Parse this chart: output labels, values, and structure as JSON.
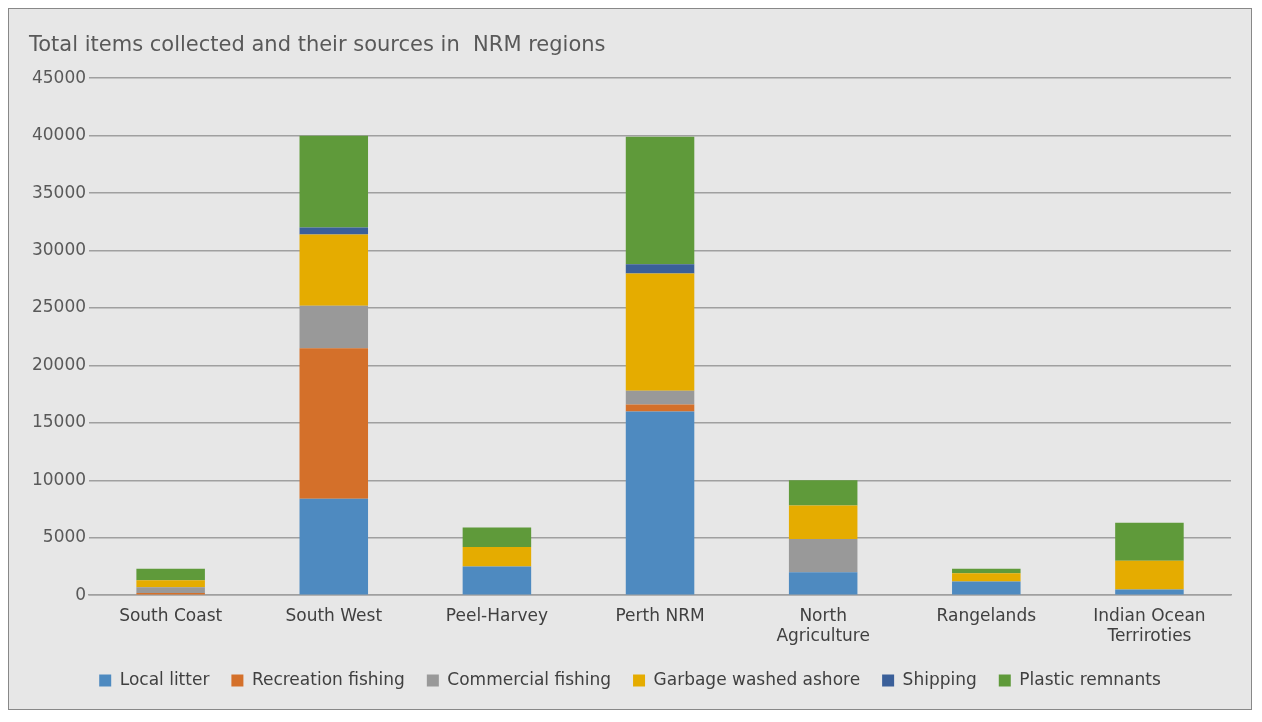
{
  "chart_data": {
    "type": "bar",
    "title": "Total items collected and their sources in  NRM regions",
    "categories": [
      "South Coast",
      "South West",
      "Peel-Harvey",
      "Perth NRM",
      "North Agriculture",
      "Rangelands",
      "Indian Ocean Terriroties"
    ],
    "stacked": true,
    "ylim": [
      0,
      45000
    ],
    "yticks": [
      0,
      5000,
      10000,
      15000,
      20000,
      25000,
      30000,
      35000,
      40000,
      45000
    ],
    "grid": "y",
    "legend": "bottom",
    "series": [
      {
        "name": "Local litter",
        "color": "#4e8ac0",
        "values": [
          null,
          8400,
          2500,
          16000,
          2000,
          1200,
          500
        ]
      },
      {
        "name": "Recreation fishing",
        "color": "#d4702a",
        "values": [
          200,
          13100,
          0,
          600,
          0,
          0,
          0
        ]
      },
      {
        "name": "Commercial fishing",
        "color": "#999999",
        "values": [
          500,
          3700,
          0,
          1200,
          2900,
          0,
          0
        ]
      },
      {
        "name": "Garbage washed ashore",
        "color": "#e5ac00",
        "values": [
          600,
          6200,
          1700,
          10200,
          2900,
          700,
          2500
        ]
      },
      {
        "name": "Shipping",
        "color": "#3a5f99",
        "values": [
          0,
          600,
          0,
          800,
          0,
          0,
          0
        ]
      },
      {
        "name": "Plastic remnants",
        "color": "#5f9a3a",
        "values": [
          1000,
          8000,
          1700,
          11100,
          2200,
          400,
          3300
        ]
      }
    ]
  }
}
